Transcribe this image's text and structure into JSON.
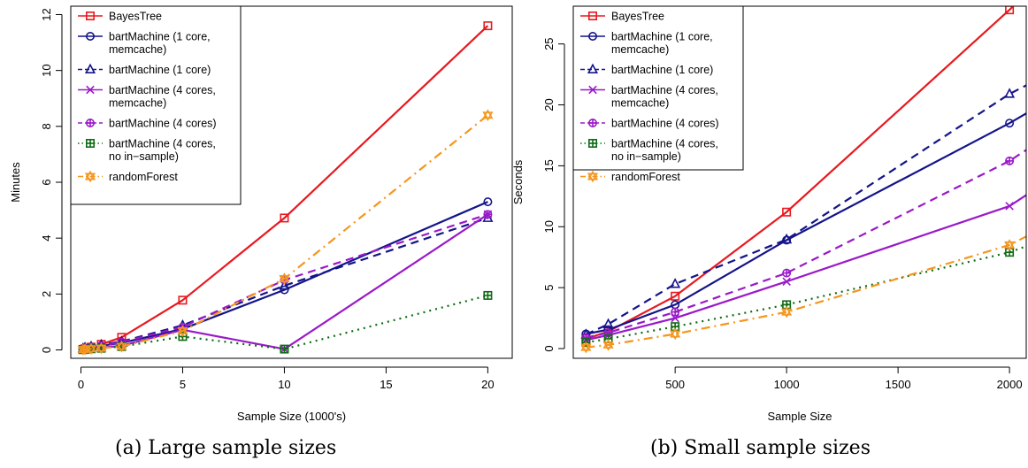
{
  "captions": {
    "left": "(a) Large sample sizes",
    "right": "(b) Small sample sizes"
  },
  "chart_data": [
    {
      "type": "line",
      "xlabel": "Sample Size (1000's)",
      "ylabel": "Minutes",
      "xlim": [
        -0.5,
        21.2
      ],
      "ylim": [
        -0.3,
        12.3
      ],
      "xticks": [
        0,
        5,
        10,
        15,
        20
      ],
      "yticks": [
        0,
        2,
        4,
        6,
        8,
        10,
        12
      ],
      "legend": "top-left",
      "series": [
        {
          "name": "BayesTree",
          "color": "#e8191f",
          "dash": "",
          "marker": "square",
          "x": [
            0.1,
            0.2,
            0.5,
            1,
            2,
            5,
            10,
            20
          ],
          "y": [
            0.02,
            0.04,
            0.1,
            0.2,
            0.45,
            1.78,
            4.72,
            11.6
          ]
        },
        {
          "name": "bartMachine (1 core, memcache)",
          "color": "#14148a",
          "dash": "",
          "marker": "circle",
          "x": [
            0.1,
            0.2,
            0.5,
            1,
            2,
            5,
            10,
            20
          ],
          "y": [
            0.04,
            0.06,
            0.1,
            0.15,
            0.25,
            0.75,
            2.15,
            5.3
          ]
        },
        {
          "name": "bartMachine (1 core)",
          "color": "#14148a",
          "dash": "9,6",
          "marker": "triangle",
          "x": [
            0.1,
            0.2,
            0.5,
            1,
            2,
            5,
            10,
            20
          ],
          "y": [
            0.05,
            0.08,
            0.12,
            0.18,
            0.3,
            0.88,
            2.3,
            4.72
          ]
        },
        {
          "name": "bartMachine (4 cores, memcache)",
          "color": "#9a19c8",
          "dash": "",
          "marker": "x",
          "x": [
            0.1,
            0.2,
            0.5,
            1,
            2,
            5,
            10,
            20
          ],
          "y": [
            0.02,
            0.03,
            0.05,
            0.08,
            0.15,
            0.72,
            0.03,
            4.85
          ]
        },
        {
          "name": "bartMachine (4 cores)",
          "color": "#9a19c8",
          "dash": "9,6",
          "marker": "circleplus",
          "x": [
            0.1,
            0.2,
            0.5,
            1,
            2,
            5,
            10,
            20
          ],
          "y": [
            0.04,
            0.06,
            0.1,
            0.15,
            0.28,
            0.82,
            2.5,
            4.85
          ]
        },
        {
          "name": "bartMachine (4 cores, no in-sample)",
          "color": "#0e6b14",
          "dash": "2,5",
          "marker": "squareplus",
          "x": [
            0.1,
            0.2,
            0.5,
            1,
            2,
            5,
            10,
            20
          ],
          "y": [
            0.01,
            0.02,
            0.04,
            0.06,
            0.12,
            0.48,
            0.03,
            1.95
          ]
        },
        {
          "name": "randomForest",
          "color": "#f5961e",
          "dash": "10,5,2,5",
          "marker": "star",
          "x": [
            0.1,
            0.2,
            0.5,
            1,
            2,
            5,
            10,
            20
          ],
          "y": [
            0.01,
            0.02,
            0.04,
            0.06,
            0.12,
            0.68,
            2.55,
            8.4
          ]
        }
      ]
    },
    {
      "type": "line",
      "xlabel": "Sample Size",
      "ylabel": "Seconds",
      "xlim": [
        43,
        2075
      ],
      "ylim": [
        -0.8,
        28.1
      ],
      "xticks": [
        500,
        1000,
        1500,
        2000
      ],
      "yticks": [
        0,
        5,
        10,
        15,
        20,
        25
      ],
      "legend": "top-left",
      "series": [
        {
          "name": "BayesTree",
          "color": "#e8191f",
          "dash": "",
          "marker": "square",
          "x": [
            100,
            200,
            500,
            1000,
            2000,
            2075
          ],
          "y": [
            0.8,
            1.4,
            4.3,
            11.2,
            27.8,
            29.2
          ]
        },
        {
          "name": "bartMachine (1 core, memcache)",
          "color": "#14148a",
          "dash": "",
          "marker": "circle",
          "x": [
            100,
            200,
            500,
            1000,
            2000,
            2075
          ],
          "y": [
            1.2,
            1.55,
            3.6,
            8.9,
            18.5,
            19.3
          ]
        },
        {
          "name": "bartMachine (1 core)",
          "color": "#14148a",
          "dash": "9,6",
          "marker": "triangle",
          "x": [
            100,
            200,
            500,
            1000,
            2000,
            2075
          ],
          "y": [
            1.15,
            2.0,
            5.3,
            8.95,
            20.9,
            21.6
          ]
        },
        {
          "name": "bartMachine (4 cores, memcache)",
          "color": "#9a19c8",
          "dash": "",
          "marker": "x",
          "x": [
            100,
            200,
            500,
            1000,
            2000,
            2075
          ],
          "y": [
            0.7,
            1.1,
            2.5,
            5.5,
            11.7,
            12.6
          ]
        },
        {
          "name": "bartMachine (4 cores)",
          "color": "#9a19c8",
          "dash": "9,6",
          "marker": "circleplus",
          "x": [
            100,
            200,
            500,
            1000,
            2000,
            2075
          ],
          "y": [
            0.9,
            1.3,
            3.0,
            6.2,
            15.4,
            16.3
          ]
        },
        {
          "name": "bartMachine (4 cores, no in-sample)",
          "color": "#0e6b14",
          "dash": "2,5",
          "marker": "squareplus",
          "x": [
            100,
            200,
            500,
            1000,
            2000,
            2075
          ],
          "y": [
            0.5,
            0.8,
            1.8,
            3.6,
            7.9,
            8.4
          ]
        },
        {
          "name": "randomForest",
          "color": "#f5961e",
          "dash": "10,5,2,5",
          "marker": "star",
          "x": [
            100,
            200,
            500,
            1000,
            2000,
            2075
          ],
          "y": [
            0.1,
            0.3,
            1.2,
            3.0,
            8.5,
            9.2
          ]
        }
      ]
    }
  ],
  "legend": {
    "left_lines": [
      [
        "BayesTree"
      ],
      [
        "bartMachine (1 core,",
        "memcache)"
      ],
      [
        "bartMachine (1 core)"
      ],
      [
        "bartMachine (4 cores,",
        "memcache)"
      ],
      [
        "bartMachine (4 cores)"
      ],
      [
        "bartMachine (4 cores,",
        "no in−sample)"
      ],
      [
        "randomForest"
      ]
    ],
    "right_lines": [
      [
        "BayesTree"
      ],
      [
        "bartMachine (1 core,",
        " memcache)"
      ],
      [
        "bartMachine (1 core)"
      ],
      [
        "bartMachine (4 cores,",
        " memcache)"
      ],
      [
        "bartMachine (4 cores)"
      ],
      [
        "bartMachine (4 cores,",
        " no in−sample)"
      ],
      [
        "randomForest"
      ]
    ]
  }
}
